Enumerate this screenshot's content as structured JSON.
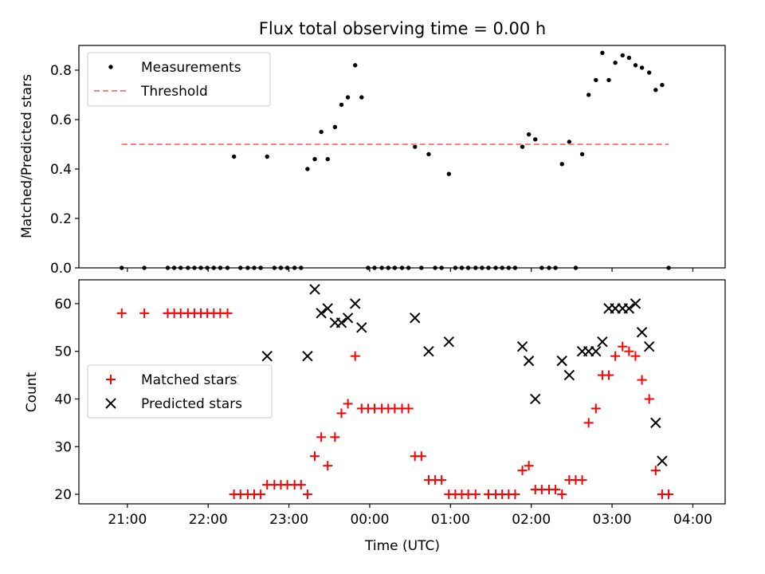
{
  "chart_data": [
    {
      "type": "scatter",
      "title": "Flux total observing time = 0.00 h",
      "xlabel": "",
      "ylabel": "Matched/Predicted stars",
      "xlim": [
        -0.6,
        7.4
      ],
      "ylim": [
        0,
        0.9
      ],
      "xticks": [
        0,
        1,
        2,
        3,
        4,
        5,
        6,
        7
      ],
      "xtick_labels": [
        "21:00",
        "22:00",
        "23:00",
        "00:00",
        "01:00",
        "02:00",
        "03:00",
        "04:00"
      ],
      "yticks": [
        0,
        0.2,
        0.4,
        0.6,
        0.8
      ],
      "ytick_labels": [
        "0.0",
        "0.2",
        "0.4",
        "0.6",
        "0.8"
      ],
      "legend_position": "upper-left",
      "series": [
        {
          "name": "Measurements",
          "marker": "dot",
          "color": "#000000",
          "points": [
            [
              -0.07,
              0
            ],
            [
              0.21,
              0
            ],
            [
              0.5,
              0
            ],
            [
              0.58,
              0
            ],
            [
              0.66,
              0
            ],
            [
              0.75,
              0
            ],
            [
              0.83,
              0
            ],
            [
              0.91,
              0
            ],
            [
              0.99,
              0
            ],
            [
              1.07,
              0
            ],
            [
              1.15,
              0
            ],
            [
              1.24,
              0
            ],
            [
              1.32,
              0.45
            ],
            [
              1.4,
              0
            ],
            [
              1.49,
              0
            ],
            [
              1.57,
              0
            ],
            [
              1.65,
              0
            ],
            [
              1.73,
              0.45
            ],
            [
              1.82,
              0
            ],
            [
              1.9,
              0
            ],
            [
              1.98,
              0
            ],
            [
              2.07,
              0
            ],
            [
              2.15,
              0
            ],
            [
              2.23,
              0.4
            ],
            [
              2.32,
              0.44
            ],
            [
              2.4,
              0.55
            ],
            [
              2.48,
              0.44
            ],
            [
              2.57,
              0.57
            ],
            [
              2.65,
              0.66
            ],
            [
              2.73,
              0.69
            ],
            [
              2.82,
              0.82
            ],
            [
              2.9,
              0.69
            ],
            [
              2.98,
              0
            ],
            [
              3.06,
              0
            ],
            [
              3.15,
              0
            ],
            [
              3.23,
              0
            ],
            [
              3.31,
              0
            ],
            [
              3.4,
              0
            ],
            [
              3.48,
              0
            ],
            [
              3.56,
              0.49
            ],
            [
              3.64,
              0
            ],
            [
              3.73,
              0.46
            ],
            [
              3.81,
              0
            ],
            [
              3.89,
              0
            ],
            [
              3.98,
              0.38
            ],
            [
              4.06,
              0
            ],
            [
              4.14,
              0
            ],
            [
              4.22,
              0
            ],
            [
              4.31,
              0
            ],
            [
              4.39,
              0
            ],
            [
              4.47,
              0
            ],
            [
              4.56,
              0
            ],
            [
              4.64,
              0
            ],
            [
              4.72,
              0
            ],
            [
              4.8,
              0
            ],
            [
              4.89,
              0.49
            ],
            [
              4.97,
              0.54
            ],
            [
              5.05,
              0.52
            ],
            [
              5.13,
              0
            ],
            [
              5.22,
              0
            ],
            [
              5.3,
              0
            ],
            [
              5.38,
              0.42
            ],
            [
              5.47,
              0.51
            ],
            [
              5.55,
              0
            ],
            [
              5.63,
              0.46
            ],
            [
              5.71,
              0.7
            ],
            [
              5.8,
              0.76
            ],
            [
              5.88,
              0.87
            ],
            [
              5.96,
              0.76
            ],
            [
              6.04,
              0.83
            ],
            [
              6.13,
              0.86
            ],
            [
              6.21,
              0.85
            ],
            [
              6.29,
              0.82
            ],
            [
              6.37,
              0.81
            ],
            [
              6.46,
              0.79
            ],
            [
              6.54,
              0.72
            ],
            [
              6.62,
              0.74
            ],
            [
              6.7,
              0
            ]
          ]
        },
        {
          "name": "Threshold",
          "marker": "dashed-line",
          "color": "#ff7f7f",
          "points": [
            [
              -0.07,
              0.5
            ],
            [
              6.7,
              0.5
            ]
          ]
        }
      ]
    },
    {
      "type": "scatter",
      "title": "",
      "xlabel": "Time (UTC)",
      "ylabel": "Count",
      "xlim": [
        -0.6,
        7.4
      ],
      "ylim": [
        18,
        65
      ],
      "xticks": [
        0,
        1,
        2,
        3,
        4,
        5,
        6,
        7
      ],
      "xtick_labels": [
        "21:00",
        "22:00",
        "23:00",
        "00:00",
        "01:00",
        "02:00",
        "03:00",
        "04:00"
      ],
      "yticks": [
        20,
        30,
        40,
        50,
        60
      ],
      "ytick_labels": [
        "20",
        "30",
        "40",
        "50",
        "60"
      ],
      "legend_position": "center-left",
      "series": [
        {
          "name": "Matched stars",
          "marker": "plus",
          "color": "#ff0000",
          "points": [
            [
              -0.07,
              58
            ],
            [
              0.21,
              58
            ],
            [
              0.5,
              58
            ],
            [
              0.58,
              58
            ],
            [
              0.66,
              58
            ],
            [
              0.75,
              58
            ],
            [
              0.83,
              58
            ],
            [
              0.91,
              58
            ],
            [
              0.99,
              58
            ],
            [
              1.07,
              58
            ],
            [
              1.15,
              58
            ],
            [
              1.24,
              58
            ],
            [
              1.32,
              20
            ],
            [
              1.4,
              20
            ],
            [
              1.49,
              20
            ],
            [
              1.57,
              20
            ],
            [
              1.65,
              20
            ],
            [
              1.73,
              22
            ],
            [
              1.82,
              22
            ],
            [
              1.9,
              22
            ],
            [
              1.98,
              22
            ],
            [
              2.07,
              22
            ],
            [
              2.15,
              22
            ],
            [
              2.23,
              20
            ],
            [
              2.32,
              28
            ],
            [
              2.4,
              32
            ],
            [
              2.48,
              26
            ],
            [
              2.57,
              32
            ],
            [
              2.65,
              37
            ],
            [
              2.73,
              39
            ],
            [
              2.82,
              49
            ],
            [
              2.9,
              38
            ],
            [
              2.98,
              38
            ],
            [
              3.06,
              38
            ],
            [
              3.15,
              38
            ],
            [
              3.23,
              38
            ],
            [
              3.31,
              38
            ],
            [
              3.4,
              38
            ],
            [
              3.48,
              38
            ],
            [
              3.56,
              28
            ],
            [
              3.64,
              28
            ],
            [
              3.73,
              23
            ],
            [
              3.81,
              23
            ],
            [
              3.89,
              23
            ],
            [
              3.98,
              20
            ],
            [
              4.06,
              20
            ],
            [
              4.14,
              20
            ],
            [
              4.22,
              20
            ],
            [
              4.31,
              20
            ],
            [
              4.47,
              20
            ],
            [
              4.56,
              20
            ],
            [
              4.64,
              20
            ],
            [
              4.72,
              20
            ],
            [
              4.8,
              20
            ],
            [
              4.89,
              25
            ],
            [
              4.97,
              26
            ],
            [
              5.05,
              21
            ],
            [
              5.13,
              21
            ],
            [
              5.22,
              21
            ],
            [
              5.3,
              21
            ],
            [
              5.38,
              20
            ],
            [
              5.47,
              23
            ],
            [
              5.55,
              23
            ],
            [
              5.63,
              23
            ],
            [
              5.71,
              35
            ],
            [
              5.8,
              38
            ],
            [
              5.88,
              45
            ],
            [
              5.96,
              45
            ],
            [
              6.04,
              49
            ],
            [
              6.13,
              51
            ],
            [
              6.21,
              50
            ],
            [
              6.29,
              49
            ],
            [
              6.37,
              44
            ],
            [
              6.46,
              40
            ],
            [
              6.54,
              25
            ],
            [
              6.62,
              20
            ],
            [
              6.7,
              20
            ]
          ]
        },
        {
          "name": "Predicted stars",
          "marker": "x",
          "color": "#000000",
          "points": [
            [
              1.32,
              44
            ],
            [
              1.73,
              49
            ],
            [
              2.23,
              49
            ],
            [
              2.32,
              63
            ],
            [
              2.4,
              58
            ],
            [
              2.48,
              59
            ],
            [
              2.57,
              56
            ],
            [
              2.65,
              56
            ],
            [
              2.73,
              57
            ],
            [
              2.82,
              60
            ],
            [
              2.9,
              55
            ],
            [
              3.56,
              57
            ],
            [
              3.73,
              50
            ],
            [
              3.98,
              52
            ],
            [
              4.89,
              51
            ],
            [
              4.97,
              48
            ],
            [
              5.05,
              40
            ],
            [
              5.38,
              48
            ],
            [
              5.47,
              45
            ],
            [
              5.63,
              50
            ],
            [
              5.71,
              50
            ],
            [
              5.8,
              50
            ],
            [
              5.88,
              52
            ],
            [
              5.96,
              59
            ],
            [
              6.04,
              59
            ],
            [
              6.13,
              59
            ],
            [
              6.21,
              59
            ],
            [
              6.29,
              60
            ],
            [
              6.37,
              54
            ],
            [
              6.46,
              51
            ],
            [
              6.54,
              35
            ],
            [
              6.62,
              27
            ]
          ]
        }
      ]
    }
  ]
}
